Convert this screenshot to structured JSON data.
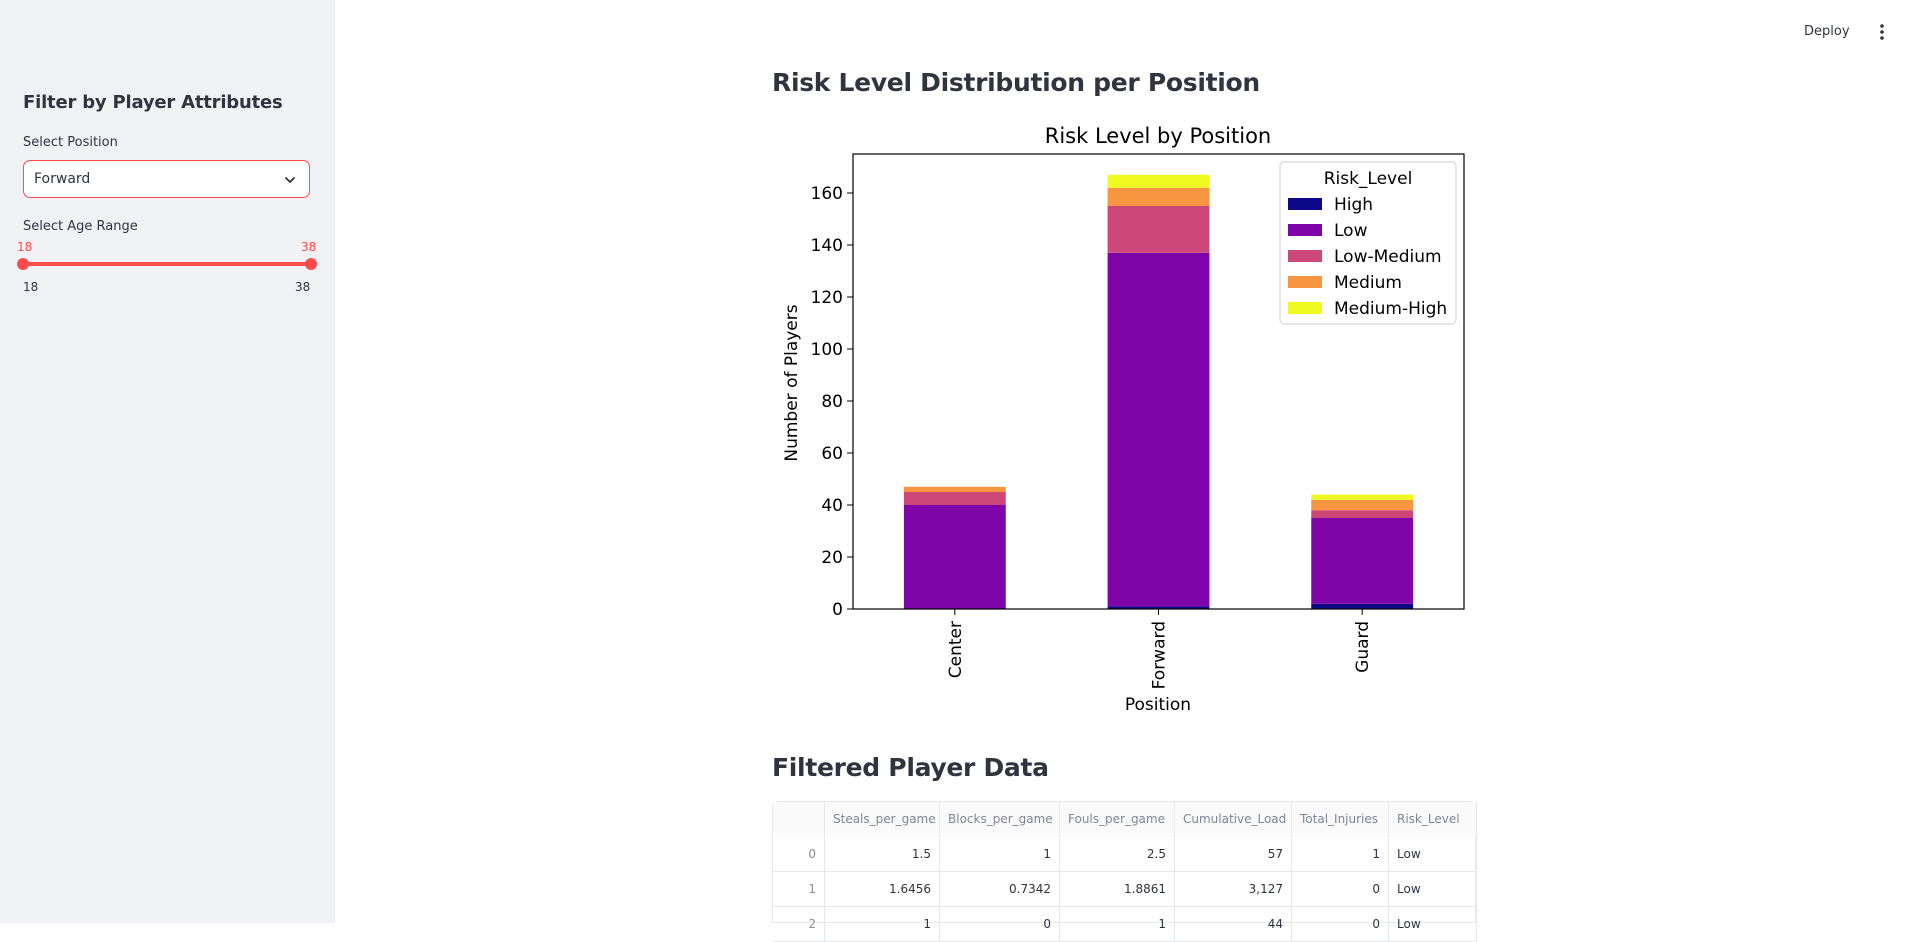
{
  "header": {
    "deploy_label": "Deploy",
    "menu_icon": "kebab-menu-icon"
  },
  "sidebar": {
    "title": "Filter by Player Attributes",
    "position_label": "Select Position",
    "position_value": "Forward",
    "age_label": "Select Age Range",
    "age_low": "18",
    "age_high": "38",
    "age_min": "18",
    "age_max": "38",
    "age_range_values": [
      18,
      38
    ],
    "age_range_bounds": [
      18,
      38
    ],
    "accent_color": "#ff4b4b"
  },
  "main": {
    "chart_heading": "Risk Level Distribution per Position",
    "table_heading": "Filtered Player Data"
  },
  "chart_data": {
    "type": "bar",
    "stacked": true,
    "title": "Risk Level by Position",
    "xlabel": "Position",
    "ylabel": "Number of Players",
    "categories": [
      "Center",
      "Forward",
      "Guard"
    ],
    "ylim": [
      0,
      175
    ],
    "yticks": [
      "0",
      "20",
      "40",
      "60",
      "80",
      "100",
      "120",
      "140",
      "160"
    ],
    "legend_title": "Risk_Level",
    "legend_position": "top-right",
    "series": [
      {
        "name": "High",
        "color": "#0d0887",
        "values": [
          0,
          1,
          2
        ]
      },
      {
        "name": "Low",
        "color": "#7e03a8",
        "values": [
          40,
          136,
          33
        ]
      },
      {
        "name": "Low-Medium",
        "color": "#cc4778",
        "values": [
          5,
          18,
          3
        ]
      },
      {
        "name": "Medium",
        "color": "#f89540",
        "values": [
          2,
          7,
          4
        ]
      },
      {
        "name": "Medium-High",
        "color": "#f0f921",
        "values": [
          0,
          5,
          2
        ]
      }
    ]
  },
  "table": {
    "columns": [
      "",
      "Steals_per_game",
      "Blocks_per_game",
      "Fouls_per_game",
      "Cumulative_Load",
      "Total_Injuries",
      "Risk_Level"
    ],
    "rows": [
      [
        "0",
        "1.5",
        "1",
        "2.5",
        "57",
        "1",
        "Low"
      ],
      [
        "1",
        "1.6456",
        "0.7342",
        "1.8861",
        "3,127",
        "0",
        "Low"
      ],
      [
        "2",
        "1",
        "0",
        "1",
        "44",
        "0",
        "Low"
      ]
    ]
  }
}
